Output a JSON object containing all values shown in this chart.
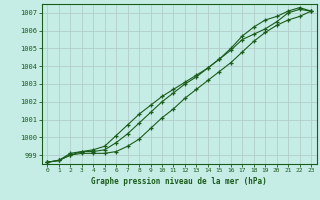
{
  "title": "Graphe pression niveau de la mer (hPa)",
  "bg_color": "#c6ece6",
  "grid_color": "#b0c8c4",
  "line_color": "#1a5c1a",
  "xlim": [
    -0.5,
    23.5
  ],
  "ylim": [
    998.5,
    1007.5
  ],
  "yticks": [
    999,
    1000,
    1001,
    1002,
    1003,
    1004,
    1005,
    1006,
    1007
  ],
  "xticks": [
    0,
    1,
    2,
    3,
    4,
    5,
    6,
    7,
    8,
    9,
    10,
    11,
    12,
    13,
    14,
    15,
    16,
    17,
    18,
    19,
    20,
    21,
    22,
    23
  ],
  "series": [
    [
      998.6,
      998.7,
      999.0,
      999.1,
      999.1,
      999.1,
      999.2,
      999.5,
      999.9,
      1000.5,
      1001.1,
      1001.6,
      1002.2,
      1002.7,
      1003.2,
      1003.7,
      1004.2,
      1004.8,
      1005.4,
      1005.9,
      1006.3,
      1006.6,
      1006.8,
      1007.1
    ],
    [
      998.6,
      998.7,
      999.0,
      999.2,
      999.3,
      999.5,
      1000.1,
      1000.7,
      1001.3,
      1001.8,
      1002.3,
      1002.7,
      1003.1,
      1003.5,
      1003.9,
      1004.4,
      1004.9,
      1005.5,
      1005.8,
      1006.1,
      1006.5,
      1007.0,
      1007.2,
      1007.1
    ],
    [
      998.6,
      998.7,
      999.1,
      999.2,
      999.2,
      999.3,
      999.7,
      1000.2,
      1000.8,
      1001.4,
      1002.0,
      1002.5,
      1003.0,
      1003.4,
      1003.9,
      1004.4,
      1005.0,
      1005.7,
      1006.2,
      1006.6,
      1006.8,
      1007.1,
      1007.3,
      1007.1
    ]
  ]
}
